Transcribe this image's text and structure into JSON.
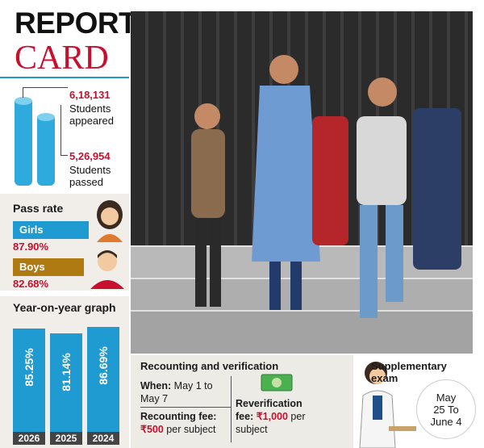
{
  "header": {
    "title_line1": "REPORT",
    "title_line2": "CARD"
  },
  "stats": [
    {
      "number": "6,18,131",
      "label_line1": "Students",
      "label_line2": "appeared"
    },
    {
      "number": "5,26,954",
      "label_line1": "Students",
      "label_line2": "passed"
    }
  ],
  "pass_rate": {
    "heading": "Pass rate",
    "girls": {
      "label": "Girls",
      "value": "87.90%",
      "fraction": 0.879
    },
    "boys": {
      "label": "Boys",
      "value": "82.68%",
      "fraction": 0.8268
    }
  },
  "yoy": {
    "heading": "Year-on-year graph",
    "columns": [
      {
        "year": "2026",
        "value_label": "85.25%",
        "value": 85.25
      },
      {
        "year": "2025",
        "value_label": "81.14%",
        "value": 81.14
      },
      {
        "year": "2024",
        "value_label": "86.69%",
        "value": 86.69
      }
    ]
  },
  "recount": {
    "heading": "Recounting and verification",
    "when_label": "When:",
    "when_line1": " May 1 to",
    "when_line2": "May 7",
    "fee_label": "Recounting fee:",
    "fee_value": "₹500",
    "fee_suffix": " per subject",
    "rever_label_line1": "Reverification",
    "rever_label_line2": "fee:",
    "rever_value": " ₹1,000",
    "rever_suffix": " per",
    "rever_line3": "subject"
  },
  "supplementary": {
    "heading_line1": "Supplementary",
    "heading_line2": "exam",
    "date_line1": "May",
    "date_line2": "25 To",
    "date_line3": "June 4"
  },
  "colors": {
    "accent_blue": "#1f9bd1",
    "accent_red": "#c8102e",
    "girls_bar": "#1f9bd1",
    "boys_bar": "#b07a12"
  },
  "icons": [
    "girl-avatar-icon",
    "boy-avatar-icon",
    "money-icon",
    "student-illustration"
  ]
}
